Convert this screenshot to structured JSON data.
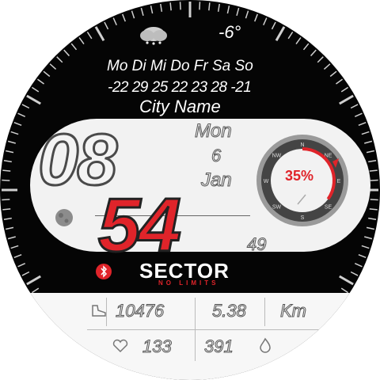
{
  "weather": {
    "icon": "cloud-snow-icon",
    "temperature": "-6°"
  },
  "forecast": {
    "days": "Mo Di Mi Do Fr Sa So",
    "temps": "-22 29 25 22 23 28 -21"
  },
  "city": "City Name",
  "time": {
    "hour": "08",
    "minute": "54",
    "second": "49"
  },
  "date": {
    "weekday": "Mon",
    "day": "6",
    "month": "Jan"
  },
  "battery": {
    "percent": "35%",
    "level": 0.35
  },
  "compass": {
    "directions": [
      "N",
      "NE",
      "E",
      "SE",
      "S",
      "SW",
      "W",
      "NW"
    ],
    "pointer_icon": "compass-needle-icon"
  },
  "moon": {
    "icon": "moon-phase-icon"
  },
  "bluetooth": {
    "icon": "bluetooth-icon"
  },
  "brand": {
    "name": "SECTOR",
    "tagline": "NO LIMITS"
  },
  "stats": {
    "steps_icon": "shoe-icon",
    "steps": "10476",
    "distance": "5.38",
    "distance_unit": "Km",
    "heart_icon": "heart-icon",
    "heart_rate": "133",
    "calories": "391",
    "calories_icon": "flame-icon"
  },
  "colors": {
    "accent": "#e0242a",
    "face": "#050505"
  }
}
